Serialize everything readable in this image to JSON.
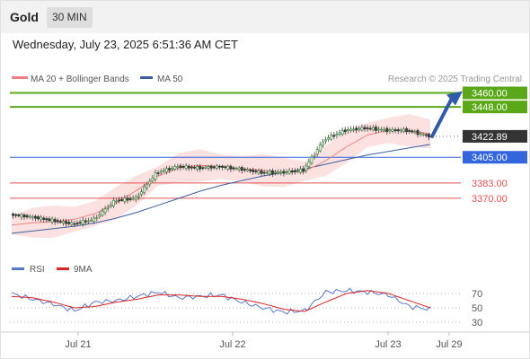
{
  "header": {
    "instrument": "Gold",
    "timeframe": "30 MIN",
    "datetime": "Wednesday, July 23, 2025 6:51:36 AM CET"
  },
  "legend": {
    "ma20_label": "MA 20 + Bollinger Bands",
    "ma50_label": "MA 50",
    "credit": "Research © 2025 Trading Central",
    "ma20_color": "#f08080",
    "ma50_color": "#3a5fa0"
  },
  "chart_data": [
    {
      "type": "line",
      "title": "",
      "x_tick_labels": [
        "Jul 21",
        "Jul 22",
        "Jul 23",
        "Jul 29"
      ],
      "ylim": [
        3330,
        3465
      ],
      "levels": [
        {
          "label": "3460.00",
          "value": 3460.0,
          "color": "#5aa818"
        },
        {
          "label": "3448.00",
          "value": 3448.0,
          "color": "#5aa818"
        },
        {
          "label": "3422.89",
          "value": 3422.89,
          "color": "#333333"
        },
        {
          "label": "3405.00",
          "value": 3405.0,
          "color": "#3366dd"
        },
        {
          "label": "3383.00",
          "value": 3383.0,
          "color": "#e05050"
        },
        {
          "label": "3370.00",
          "value": 3370.0,
          "color": "#e05050"
        }
      ],
      "current_price": 3422.89,
      "target_price": 3460.0,
      "series": [
        {
          "name": "MA 20 + Bollinger Bands",
          "x": [
            0,
            10,
            20,
            30,
            40,
            50,
            60,
            70,
            80,
            90,
            100,
            110,
            120,
            130,
            140,
            150,
            160,
            170,
            180,
            190,
            200
          ],
          "y": [
            3347,
            3349,
            3350,
            3352,
            3357,
            3366,
            3377,
            3389,
            3396,
            3398,
            3397,
            3395,
            3394,
            3392,
            3393,
            3402,
            3414,
            3424,
            3428,
            3428,
            3425
          ]
        },
        {
          "name": "MA 50",
          "x": [
            0,
            10,
            20,
            30,
            40,
            50,
            60,
            70,
            80,
            90,
            100,
            110,
            120,
            130,
            140,
            150,
            160,
            170,
            180,
            190,
            200
          ],
          "y": [
            3340,
            3342,
            3344,
            3346,
            3349,
            3353,
            3358,
            3364,
            3370,
            3376,
            3381,
            3385,
            3389,
            3392,
            3395,
            3399,
            3403,
            3407,
            3410,
            3413,
            3416
          ]
        }
      ],
      "price_path": {
        "x": [
          0,
          10,
          20,
          30,
          40,
          50,
          60,
          70,
          80,
          90,
          100,
          110,
          120,
          130,
          140,
          150,
          160,
          170,
          180,
          190,
          200
        ],
        "y": [
          3356,
          3354,
          3351,
          3348,
          3352,
          3368,
          3370,
          3392,
          3397,
          3396,
          3397,
          3395,
          3392,
          3392,
          3394,
          3420,
          3428,
          3430,
          3428,
          3428,
          3423
        ]
      }
    },
    {
      "type": "line",
      "title": "",
      "legend": [
        {
          "name": "RSI",
          "color": "#5577cc"
        },
        {
          "name": "9MA",
          "color": "#dd2222"
        }
      ],
      "y_tick_labels": [
        "70",
        "50",
        "30"
      ],
      "ylim": [
        25,
        80
      ],
      "series": [
        {
          "name": "RSI",
          "x": [
            0,
            10,
            20,
            30,
            40,
            50,
            60,
            70,
            80,
            90,
            100,
            110,
            120,
            130,
            140,
            150,
            160,
            170,
            180,
            190,
            200
          ],
          "y": [
            70,
            62,
            55,
            46,
            58,
            60,
            66,
            72,
            64,
            66,
            68,
            58,
            50,
            44,
            46,
            72,
            74,
            72,
            68,
            52,
            48
          ]
        },
        {
          "name": "9MA",
          "x": [
            0,
            10,
            20,
            30,
            40,
            50,
            60,
            70,
            80,
            90,
            100,
            110,
            120,
            130,
            140,
            150,
            160,
            170,
            180,
            190,
            200
          ],
          "y": [
            66,
            64,
            58,
            50,
            52,
            58,
            62,
            68,
            68,
            66,
            66,
            62,
            56,
            48,
            45,
            58,
            70,
            74,
            70,
            60,
            50
          ]
        }
      ]
    }
  ]
}
